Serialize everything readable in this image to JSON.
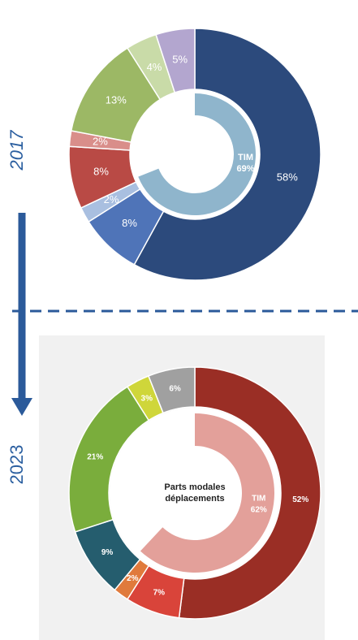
{
  "chart_data": [
    {
      "type": "donut",
      "title": "2017",
      "values": [
        58,
        8,
        2,
        8,
        2,
        13,
        4,
        5
      ],
      "value_labels": [
        "58%",
        "8%",
        "2%",
        "8%",
        "2%",
        "13%",
        "4%",
        "5%"
      ],
      "colors": [
        "#2c4a7c",
        "#4f74b8",
        "#a9bfe0",
        "#b94a45",
        "#d98e8a",
        "#9cb865",
        "#c9dba8",
        "#b3a6cf"
      ],
      "inner": {
        "name": "TIM",
        "value": 69,
        "value_label": "69%",
        "color": "#8fb5cc"
      }
    },
    {
      "type": "donut",
      "title": "2023",
      "values": [
        52,
        7,
        2,
        9,
        21,
        3,
        6
      ],
      "value_labels": [
        "52%",
        "7%",
        "2%",
        "9%",
        "21%",
        "3%",
        "6%"
      ],
      "colors": [
        "#9a2e25",
        "#d9443a",
        "#e07a3c",
        "#255d6e",
        "#7aad3c",
        "#cfd63a",
        "#a0a0a0"
      ],
      "center_label": [
        "Parts modales",
        "déplacements"
      ],
      "inner": {
        "name": "TIM",
        "value": 62,
        "value_label": "62%",
        "color": "#e3a09a"
      }
    }
  ]
}
